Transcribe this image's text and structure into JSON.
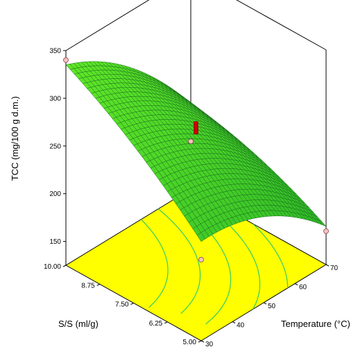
{
  "chart_data": {
    "type": "surface3d",
    "title": "",
    "zlabel": "TCC (mg/100 g d.m.)",
    "ylabel": "S/S (ml/g)",
    "xlabel": "Temperature (°C)",
    "z_ticks": [
      "150",
      "200",
      "250",
      "300",
      "350"
    ],
    "y_ticks": [
      "10.00",
      "8.75",
      "7.50",
      "6.25",
      "5.00"
    ],
    "x_ticks": [
      "30",
      "40",
      "50",
      "60",
      "70"
    ],
    "x_range": [
      30,
      70
    ],
    "y_range": [
      5,
      10
    ],
    "z_range": [
      125,
      350
    ],
    "surface_color": "#33cc33",
    "mesh_color": "#1a6e1a",
    "floor_color": "#ffff00",
    "contour_color": "#33cc66",
    "point_color": "#f4c2c2",
    "center_point_color": "#cc0000",
    "design_points": [
      {
        "temperature": 30,
        "ss": 10.0,
        "tcc": 340
      },
      {
        "temperature": 30,
        "ss": 5.0,
        "tcc": 210
      },
      {
        "temperature": 70,
        "ss": 10.0,
        "tcc": 175
      },
      {
        "temperature": 70,
        "ss": 5.0,
        "tcc": 160
      },
      {
        "temperature": 50,
        "ss": 7.5,
        "tcc": 268
      }
    ]
  }
}
